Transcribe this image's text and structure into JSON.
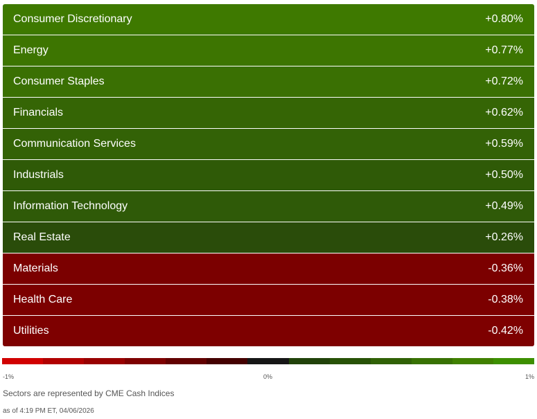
{
  "sectors": [
    {
      "name": "Consumer Discretionary",
      "change": "+0.80%",
      "color": "#3e7900"
    },
    {
      "name": "Energy",
      "change": "+0.77%",
      "color": "#3d7501"
    },
    {
      "name": "Consumer Staples",
      "change": "+0.72%",
      "color": "#3a7003"
    },
    {
      "name": "Financials",
      "change": "+0.62%",
      "color": "#356505"
    },
    {
      "name": "Communication Services",
      "change": "+0.59%",
      "color": "#336206"
    },
    {
      "name": "Industrials",
      "change": "+0.50%",
      "color": "#2f5a07"
    },
    {
      "name": "Information Technology",
      "change": "+0.49%",
      "color": "#2f5a08"
    },
    {
      "name": "Real Estate",
      "change": "+0.26%",
      "color": "#2a4c0a"
    },
    {
      "name": "Materials",
      "change": "-0.36%",
      "color": "#7b0000"
    },
    {
      "name": "Health Care",
      "change": "-0.38%",
      "color": "#7c0000"
    },
    {
      "name": "Utilities",
      "change": "-0.42%",
      "color": "#7e0000"
    }
  ],
  "scale": {
    "min_label": "-1%",
    "mid_label": "0%",
    "max_label": "1%",
    "colors": [
      "#d10000",
      "#b10000",
      "#980000",
      "#7e0000",
      "#620000",
      "#440000",
      "#161616",
      "#21420a",
      "#285207",
      "#306106",
      "#387103",
      "#408000",
      "#3d8f00"
    ]
  },
  "note": "Sectors are represented by CME Cash Indices",
  "timestamp": "as of 4:19 PM ET, 04/06/2026"
}
